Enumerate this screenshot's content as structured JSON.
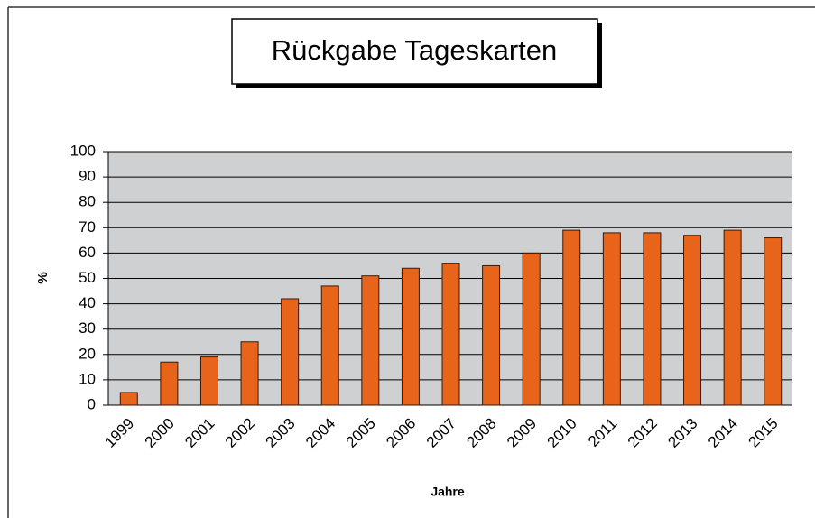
{
  "chart_data": {
    "type": "bar",
    "title": "Rückgabe Tageskarten",
    "x_label": "Jahre",
    "y_label": "%",
    "categories": [
      "1999",
      "2000",
      "2001",
      "2002",
      "2003",
      "2004",
      "2005",
      "2006",
      "2007",
      "2008",
      "2009",
      "2010",
      "2011",
      "2012",
      "2013",
      "2014",
      "2015"
    ],
    "values": [
      5,
      17,
      19,
      25,
      42,
      47,
      51,
      54,
      56,
      55,
      60,
      69,
      68,
      68,
      67,
      69,
      66
    ],
    "color": "#e8641b",
    "ylim": [
      0,
      100
    ],
    "yticks": [
      0,
      10,
      20,
      30,
      40,
      50,
      60,
      70,
      80,
      90,
      100
    ],
    "grid": true
  }
}
